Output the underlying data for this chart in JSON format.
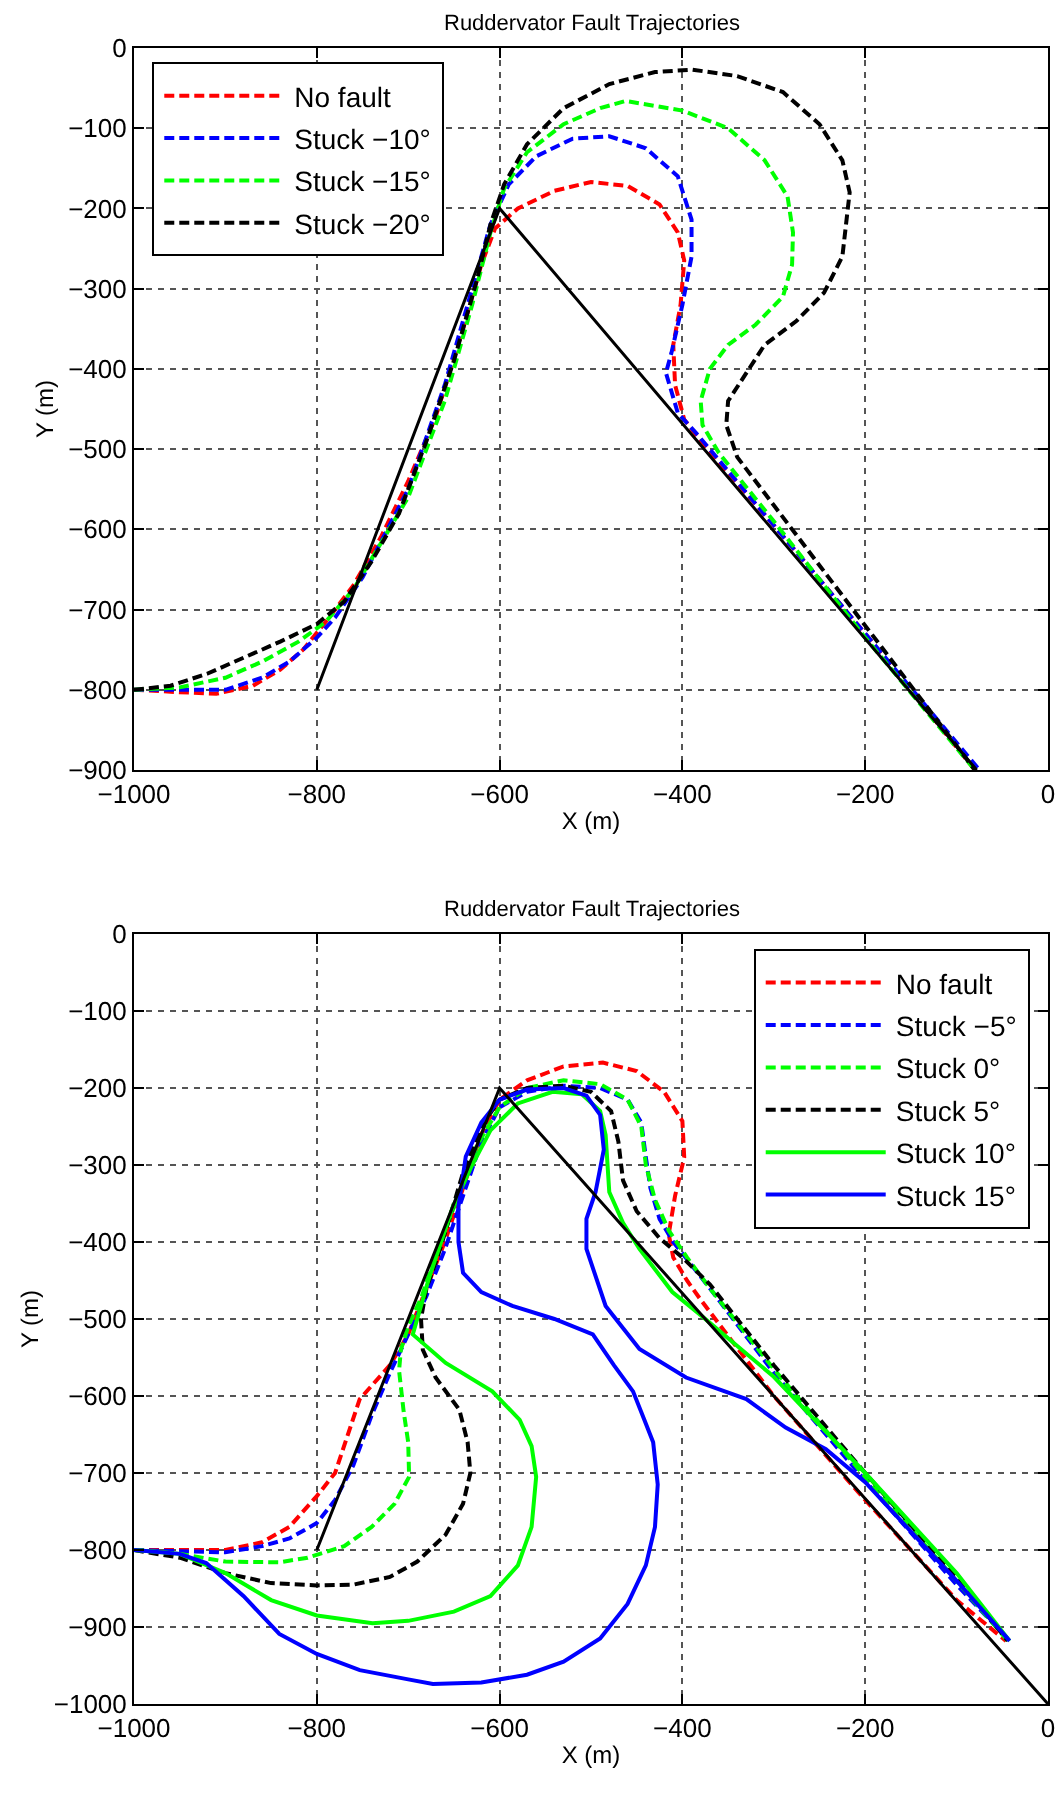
{
  "chart_data": [
    {
      "type": "line",
      "title": "Ruddervator Fault Trajectories",
      "xlabel": "X (m)",
      "ylabel": "Y (m)",
      "xlim": [
        -1000,
        0
      ],
      "ylim": [
        -900,
        0
      ],
      "xticks": [
        -1000,
        -800,
        -600,
        -400,
        -200,
        0
      ],
      "yticks": [
        -900,
        -800,
        -700,
        -600,
        -500,
        -400,
        -300,
        -200,
        -100,
        0
      ],
      "grid": true,
      "legend": "top left",
      "series": [
        {
          "name": "No fault",
          "color": "#ff0000",
          "line_style": "dashed",
          "x": [
            -1000,
            -950,
            -910,
            -870,
            -840,
            -815,
            -790,
            -760,
            -730,
            -700,
            -670,
            -640,
            -620,
            -605,
            -580,
            -540,
            -500,
            -460,
            -425,
            -405,
            -398,
            -402,
            -410,
            -408,
            -398,
            -380,
            -300,
            -200,
            -80
          ],
          "values": [
            -800,
            -803,
            -805,
            -795,
            -775,
            -750,
            -715,
            -670,
            -610,
            -540,
            -460,
            -350,
            -270,
            -225,
            -200,
            -178,
            -167,
            -172,
            -195,
            -230,
            -265,
            -320,
            -370,
            -420,
            -463,
            -490,
            -595,
            -730,
            -900
          ]
        },
        {
          "name": "Stuck −10°",
          "color": "#0000ff",
          "line_style": "dashed",
          "x": [
            -1000,
            -950,
            -900,
            -860,
            -830,
            -800,
            -780,
            -750,
            -700,
            -660,
            -630,
            -610,
            -590,
            -560,
            -520,
            -480,
            -440,
            -405,
            -390,
            -390,
            -400,
            -412,
            -418,
            -405,
            -385,
            -300,
            -200,
            -75
          ],
          "values": [
            -800,
            -800,
            -800,
            -785,
            -765,
            -735,
            -710,
            -660,
            -550,
            -420,
            -300,
            -220,
            -170,
            -135,
            -113,
            -110,
            -125,
            -160,
            -214,
            -260,
            -320,
            -380,
            -405,
            -455,
            -480,
            -595,
            -730,
            -900
          ]
        },
        {
          "name": "Stuck −15°",
          "color": "#00ff00",
          "line_style": "dashed",
          "x": [
            -1000,
            -950,
            -900,
            -860,
            -820,
            -790,
            -760,
            -700,
            -660,
            -630,
            -610,
            -595,
            -570,
            -530,
            -490,
            -462,
            -400,
            -350,
            -310,
            -285,
            -279,
            -280,
            -290,
            -320,
            -350,
            -370,
            -380,
            -378,
            -360,
            -300,
            -200,
            -80
          ],
          "values": [
            -800,
            -797,
            -785,
            -765,
            -740,
            -715,
            -675,
            -560,
            -440,
            -320,
            -230,
            -175,
            -130,
            -95,
            -75,
            -66,
            -78,
            -100,
            -140,
            -185,
            -230,
            -270,
            -310,
            -345,
            -370,
            -400,
            -440,
            -470,
            -505,
            -590,
            -735,
            -900
          ]
        },
        {
          "name": "Stuck −20°",
          "color": "#000000",
          "line_style": "dashed",
          "x": [
            -1000,
            -960,
            -920,
            -880,
            -840,
            -800,
            -770,
            -740,
            -710,
            -680,
            -650,
            -625,
            -610,
            -595,
            -570,
            -530,
            -480,
            -430,
            -389,
            -340,
            -290,
            -250,
            -225,
            -217,
            -225,
            -245,
            -275,
            -310,
            -330,
            -350,
            -352,
            -340,
            -300,
            -200,
            -80
          ],
          "values": [
            -800,
            -795,
            -780,
            -760,
            -740,
            -718,
            -690,
            -640,
            -580,
            -490,
            -390,
            -290,
            -220,
            -170,
            -120,
            -75,
            -45,
            -30,
            -27,
            -35,
            -55,
            -95,
            -140,
            -180,
            -260,
            -305,
            -340,
            -370,
            -405,
            -440,
            -470,
            -510,
            -570,
            -720,
            -900
          ]
        },
        {
          "color": "#000000",
          "line_style": "solid",
          "x": [
            -800,
            -600,
            -78
          ],
          "values": [
            -800,
            -200,
            -900
          ]
        }
      ]
    },
    {
      "type": "line",
      "title": "Ruddervator Fault Trajectories",
      "xlabel": "X (m)",
      "ylabel": "Y (m)",
      "xlim": [
        -1000,
        0
      ],
      "ylim": [
        -1000,
        0
      ],
      "xticks": [
        -1000,
        -800,
        -600,
        -400,
        -200,
        0
      ],
      "yticks": [
        -1000,
        -900,
        -800,
        -700,
        -600,
        -500,
        -400,
        -300,
        -200,
        -100,
        0
      ],
      "grid": true,
      "legend": "top right",
      "series": [
        {
          "name": "No fault",
          "color": "#ff0000",
          "line_style": "dashed",
          "x": [
            -1000,
            -950,
            -900,
            -860,
            -830,
            -800,
            -780,
            -753,
            -720,
            -700,
            -680,
            -660,
            -640,
            -620,
            -600,
            -570,
            -530,
            -487,
            -450,
            -420,
            -400,
            -398,
            -408,
            -415,
            -410,
            -395,
            -380,
            -300,
            -200,
            -100,
            -46
          ],
          "values": [
            -800,
            -800,
            -800,
            -790,
            -770,
            -730,
            -700,
            -604,
            -560,
            -520,
            -460,
            -400,
            -330,
            -260,
            -215,
            -190,
            -172,
            -167,
            -178,
            -205,
            -243,
            -290,
            -340,
            -390,
            -420,
            -450,
            -475,
            -600,
            -735,
            -865,
            -918
          ]
        },
        {
          "name": "Stuck −5°",
          "color": "#0000ff",
          "line_style": "dashed",
          "x": [
            -1000,
            -900,
            -860,
            -830,
            -800,
            -780,
            -760,
            -740,
            -720,
            -700,
            -680,
            -660,
            -640,
            -620,
            -600,
            -570,
            -530,
            -490,
            -460,
            -445,
            -440,
            -435,
            -425,
            -410,
            -390,
            -370,
            -300,
            -200,
            -100,
            -42
          ],
          "values": [
            -800,
            -803,
            -795,
            -785,
            -765,
            -735,
            -690,
            -625,
            -570,
            -520,
            -470,
            -410,
            -340,
            -270,
            -225,
            -205,
            -197,
            -200,
            -215,
            -245,
            -290,
            -330,
            -370,
            -400,
            -430,
            -460,
            -570,
            -710,
            -845,
            -918
          ]
        },
        {
          "name": "Stuck 0°",
          "color": "#00ff00",
          "line_style": "dashed",
          "x": [
            -1000,
            -950,
            -900,
            -841,
            -810,
            -770,
            -740,
            -715,
            -699,
            -700,
            -705,
            -710,
            -708,
            -700,
            -685,
            -665,
            -645,
            -625,
            -600,
            -570,
            -530,
            -490,
            -460,
            -445,
            -440,
            -430,
            -415,
            -395,
            -370,
            -300,
            -200,
            -100,
            -44
          ],
          "values": [
            -800,
            -805,
            -815,
            -816,
            -810,
            -795,
            -770,
            -740,
            -705,
            -660,
            -620,
            -567,
            -540,
            -510,
            -470,
            -400,
            -340,
            -275,
            -225,
            -200,
            -190,
            -195,
            -215,
            -250,
            -300,
            -345,
            -385,
            -420,
            -460,
            -565,
            -705,
            -840,
            -918
          ]
        },
        {
          "name": "Stuck 5°",
          "color": "#000000",
          "line_style": "dashed",
          "x": [
            -1000,
            -950,
            -900,
            -850,
            -800,
            -760,
            -720,
            -690,
            -659,
            -640,
            -632,
            -635,
            -644,
            -670,
            -684,
            -686,
            -680,
            -668,
            -655,
            -640,
            -620,
            -600,
            -570,
            -530,
            -500,
            -478,
            -470,
            -465,
            -450,
            -425,
            -400,
            -370,
            -300,
            -200,
            -100,
            -44
          ],
          "values": [
            -800,
            -810,
            -830,
            -843,
            -846,
            -845,
            -835,
            -815,
            -780,
            -740,
            -700,
            -660,
            -618,
            -576,
            -540,
            -500,
            -460,
            -420,
            -370,
            -310,
            -250,
            -215,
            -200,
            -197,
            -205,
            -230,
            -270,
            -320,
            -360,
            -395,
            -420,
            -455,
            -560,
            -700,
            -835,
            -918
          ]
        },
        {
          "name": "Stuck 10°",
          "color": "#00ff00",
          "line_style": "solid",
          "x": [
            -1000,
            -950,
            -900,
            -850,
            -800,
            -739,
            -700,
            -650,
            -610,
            -580,
            -565,
            -560,
            -565,
            -578,
            -608,
            -659,
            -695,
            -677,
            -651,
            -630,
            -610,
            -580,
            -542,
            -510,
            -490,
            -484,
            -480,
            -465,
            -447,
            -411,
            -380,
            -300,
            -200,
            -100,
            -42
          ],
          "values": [
            -800,
            -805,
            -830,
            -865,
            -885,
            -895,
            -892,
            -880,
            -860,
            -820,
            -770,
            -705,
            -665,
            -631,
            -594,
            -557,
            -520,
            -446,
            -354,
            -300,
            -255,
            -220,
            -205,
            -208,
            -230,
            -261,
            -335,
            -375,
            -409,
            -465,
            -495,
            -575,
            -700,
            -830,
            -918
          ]
        },
        {
          "name": "Stuck 15°",
          "color": "#0000ff",
          "line_style": "solid",
          "x": [
            -1000,
            -950,
            -921,
            -880,
            -841,
            -800,
            -753,
            -700,
            -673,
            -620,
            -570,
            -530,
            -490,
            -460,
            -440,
            -430,
            -427,
            -432,
            -442,
            -454,
            -475,
            -498,
            -540,
            -586,
            -620,
            -640,
            -645,
            -645,
            -637,
            -620,
            -600,
            -570,
            -530,
            -505,
            -490,
            -486,
            -495,
            -505,
            -505,
            -484,
            -447,
            -396,
            -330,
            -287,
            -243,
            -200,
            -100,
            -42
          ],
          "values": [
            -800,
            -805,
            -817,
            -860,
            -909,
            -935,
            -956,
            -968,
            -974,
            -972,
            -962,
            -945,
            -915,
            -870,
            -820,
            -770,
            -715,
            -660,
            -630,
            -594,
            -560,
            -520,
            -500,
            -483,
            -465,
            -440,
            -400,
            -354,
            -289,
            -245,
            -215,
            -202,
            -200,
            -210,
            -235,
            -280,
            -335,
            -370,
            -409,
            -483,
            -539,
            -576,
            -604,
            -641,
            -669,
            -712,
            -840,
            -918
          ]
        },
        {
          "color": "#000000",
          "line_style": "solid",
          "x": [
            -800,
            -600,
            0
          ],
          "values": [
            -800,
            -200,
            -1000
          ]
        }
      ]
    }
  ]
}
